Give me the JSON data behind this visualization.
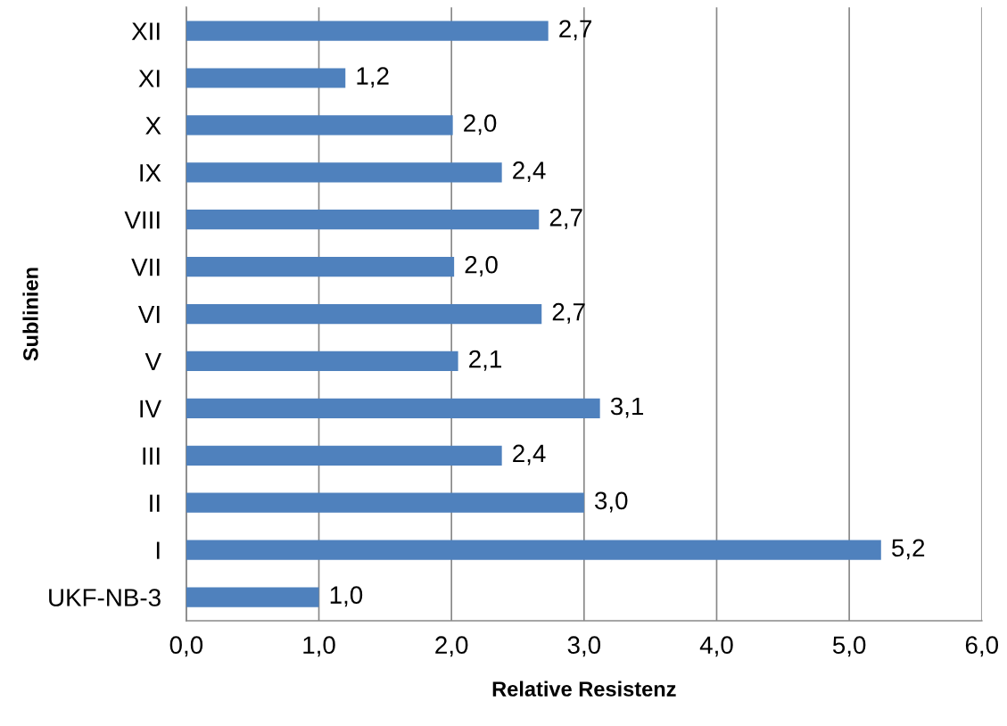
{
  "chart_data": {
    "type": "bar",
    "orientation": "horizontal",
    "xlabel": "Relative Resistenz",
    "ylabel": "Sublinien",
    "categories": [
      "XII",
      "XI",
      "X",
      "IX",
      "VIII",
      "VII",
      "VI",
      "V",
      "IV",
      "III",
      "II",
      "I",
      "UKF-NB-3"
    ],
    "values": [
      2.73,
      1.2,
      2.01,
      2.38,
      2.66,
      2.02,
      2.68,
      2.05,
      3.12,
      2.38,
      3.0,
      5.24,
      1.0
    ],
    "value_labels": [
      "2,7",
      "1,2",
      "2,0",
      "2,4",
      "2,7",
      "2,0",
      "2,7",
      "2,1",
      "3,1",
      "2,4",
      "3,0",
      "5,2",
      "1,0"
    ],
    "color": "#4f81bd",
    "xlim": [
      0,
      6
    ],
    "xticks": [
      {
        "value": 0,
        "label": "0,0"
      },
      {
        "value": 1,
        "label": "1,0"
      },
      {
        "value": 2,
        "label": "2,0"
      },
      {
        "value": 3,
        "label": "3,0"
      },
      {
        "value": 4,
        "label": "4,0"
      },
      {
        "value": 5,
        "label": "5,0"
      },
      {
        "value": 6,
        "label": "6,0"
      }
    ],
    "grid": "x",
    "legend": false
  }
}
